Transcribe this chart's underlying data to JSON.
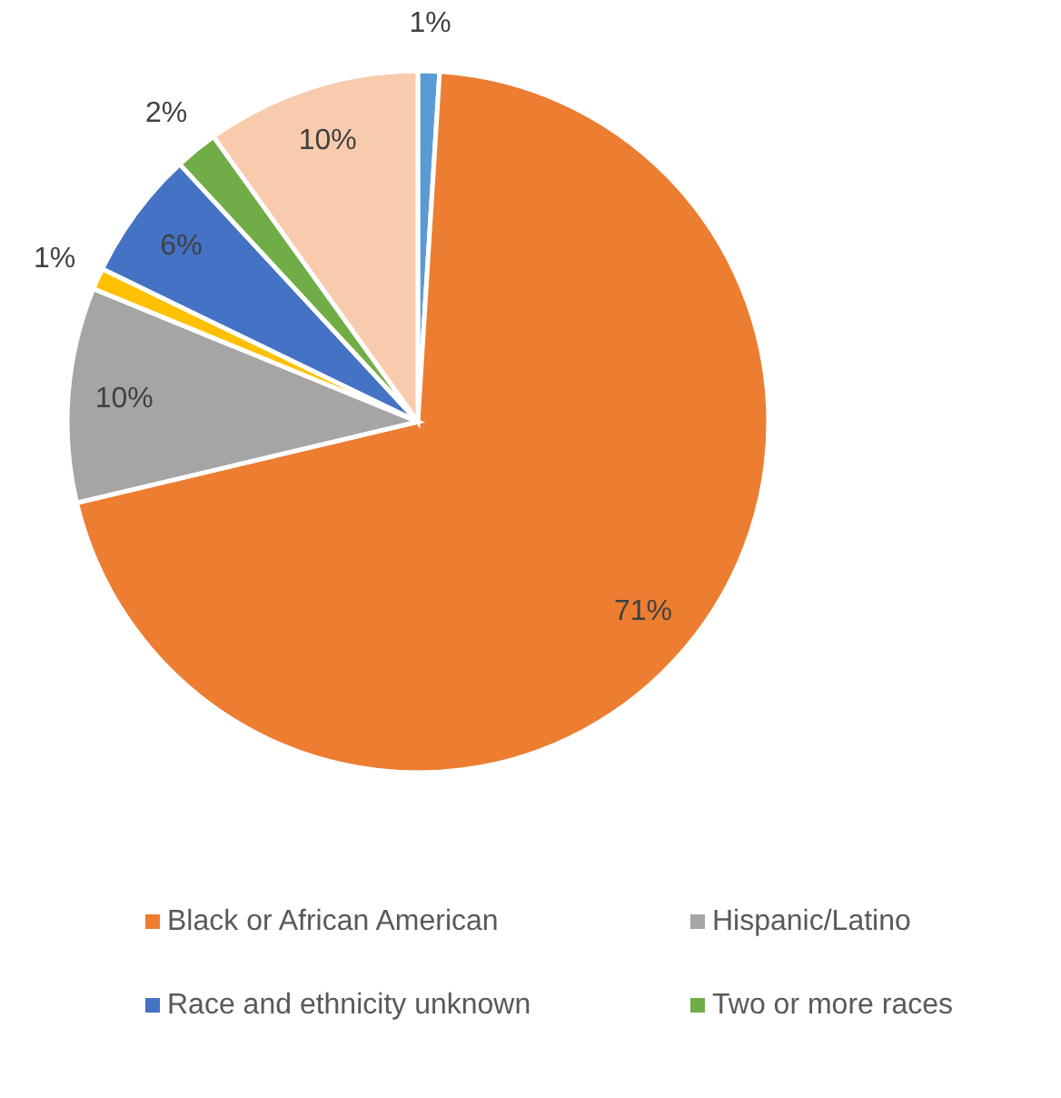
{
  "chart_data": {
    "type": "pie",
    "categories": [
      null,
      "Black or African American",
      "Hispanic/Latino",
      null,
      "Race and ethnicity unknown",
      "Two or more races",
      null
    ],
    "values": [
      1,
      71,
      10,
      1,
      6,
      2,
      10
    ],
    "value_labels": [
      "1%",
      "71%",
      "10%",
      "1%",
      "6%",
      "2%",
      "10%"
    ],
    "colors": [
      "#5b9bd5",
      "#ed7d31",
      "#a5a5a5",
      "#ffc000",
      "#4472c4",
      "#70ad47",
      "#f8cbad"
    ],
    "legend": "bottom"
  }
}
